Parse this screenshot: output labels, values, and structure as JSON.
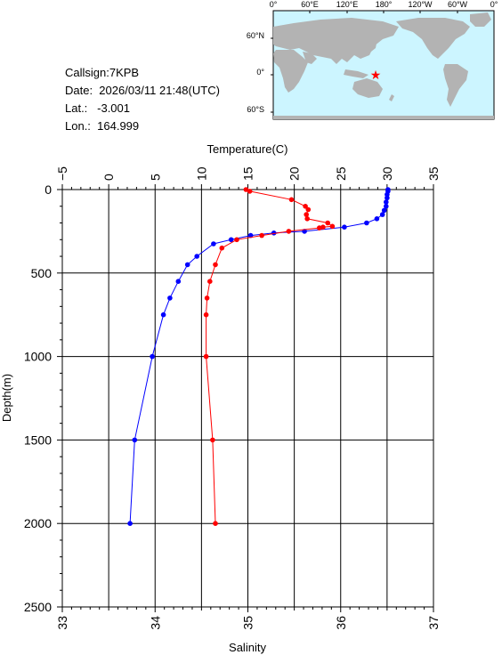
{
  "info": {
    "callsign": "Callsign:7KPB",
    "date": "Date:  2026/03/11 21:48(UTC)",
    "lat": "Lat.:   -3.001",
    "lon": "Lon.:  164.999"
  },
  "map": {
    "lon_labels": [
      "0°",
      "60°E",
      "120°E",
      "180°",
      "120°W",
      "60°W",
      "0°"
    ],
    "lat_labels": [
      "60°N",
      "0°",
      "60°S"
    ],
    "ocean_color": "#ccf5ff",
    "land_color": "#b3b3b3",
    "station_color": "#ff0000"
  },
  "chart_data": {
    "type": "line",
    "ylabel": "Depth(m)",
    "ylim": [
      2500,
      0
    ],
    "yticks": [
      "0",
      "500",
      "1000",
      "1500",
      "2000",
      "2500"
    ],
    "top_axis": {
      "label": "Temperature(C)",
      "range": [
        -5,
        35
      ],
      "ticks": [
        "−5",
        "0",
        "5",
        "10",
        "15",
        "20",
        "25",
        "30",
        "35"
      ]
    },
    "bottom_axis": {
      "label": "Salinity",
      "range": [
        33,
        37
      ],
      "ticks": [
        "33",
        "34",
        "35",
        "36",
        "37"
      ]
    },
    "grid": true,
    "series": [
      {
        "axis": "temperature",
        "color": "#0000ff",
        "depth": [
          0,
          10,
          30,
          50,
          75,
          100,
          125,
          150,
          175,
          200,
          225,
          250,
          260,
          275,
          300,
          325,
          400,
          450,
          550,
          650,
          750,
          1000,
          1500,
          2000
        ],
        "values": [
          30.1,
          30.1,
          30.0,
          30.0,
          29.9,
          29.9,
          29.7,
          29.5,
          28.9,
          27.8,
          25.4,
          21.1,
          17.8,
          15.3,
          13.2,
          11.3,
          9.5,
          8.5,
          7.5,
          6.6,
          5.9,
          4.7,
          2.8,
          2.3
        ]
      },
      {
        "axis": "salinity",
        "color": "#ff0000",
        "depth": [
          0,
          10,
          60,
          100,
          120,
          150,
          175,
          200,
          220,
          225,
          230,
          250,
          275,
          300,
          350,
          450,
          550,
          650,
          750,
          1000,
          1500,
          2000
        ],
        "values": [
          34.98,
          35.02,
          35.47,
          35.62,
          35.65,
          35.63,
          35.64,
          35.86,
          35.91,
          35.81,
          35.77,
          35.44,
          35.15,
          34.88,
          34.72,
          34.65,
          34.59,
          34.56,
          34.55,
          34.55,
          34.62,
          34.65
        ]
      }
    ]
  }
}
